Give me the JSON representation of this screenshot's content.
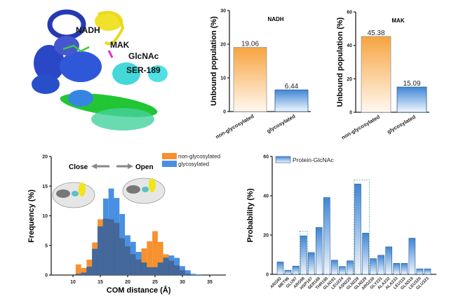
{
  "structure_panel": {
    "labels": [
      "NADH",
      "MAK",
      "GlcNAc",
      "SER-189"
    ]
  },
  "chart_data": [
    {
      "type": "bar",
      "title": "NADH",
      "ylabel": "Unbound population (%)",
      "categories": [
        "non-glycosylated",
        "glycosylated"
      ],
      "values": [
        19.06,
        6.44
      ],
      "data_labels": [
        "19.06",
        "6.44"
      ],
      "ylim": [
        0,
        30
      ],
      "yticks": [
        0,
        10,
        20,
        30
      ],
      "colors": [
        "#f7a84a",
        "#4a90d9"
      ],
      "grid": false
    },
    {
      "type": "bar",
      "title": "MAK",
      "ylabel": "Unbound population (%)",
      "categories": [
        "non-glycosylated",
        "glycosylated"
      ],
      "values": [
        45.38,
        15.09
      ],
      "data_labels": [
        "45.38",
        "15.09"
      ],
      "ylim": [
        0,
        60
      ],
      "yticks": [
        0,
        20,
        40,
        60
      ],
      "colors": [
        "#f7a84a",
        "#4a90d9"
      ],
      "grid": false
    },
    {
      "type": "bar",
      "subtype": "histogram",
      "xlabel": "COM distance (Å)",
      "ylabel": "Frequency (%)",
      "xlim": [
        7,
        38
      ],
      "ylim": [
        0,
        20
      ],
      "xticks": [
        10,
        15,
        20,
        25,
        30,
        35
      ],
      "yticks": [
        0,
        5,
        10,
        15,
        20
      ],
      "bin_starts": [
        10.5,
        11.5,
        12.5,
        13.5,
        14.5,
        15.5,
        16.5,
        17.5,
        18.5,
        19.5,
        20.5,
        21.5,
        22.5,
        23.5,
        24.5,
        25.5,
        26.5,
        27.5,
        28.5,
        29.5,
        30.5,
        31.5,
        32.5
      ],
      "bin_width": 1,
      "series": [
        {
          "name": "non-glycosylated",
          "color": "#f5922f",
          "values": [
            1.8,
            1.2,
            2.6,
            5.5,
            9.4,
            9.5,
            9.4,
            8.8,
            6.2,
            4.8,
            3.5,
            2.6,
            4.5,
            5.7,
            7.4,
            5.6,
            3.5,
            2.4,
            1.6,
            0.8,
            0.2,
            0,
            0
          ]
        },
        {
          "name": "glycosylated",
          "color": "#4a90e2",
          "values": [
            0.2,
            0.4,
            1.4,
            4.4,
            8.2,
            12.9,
            14.6,
            13.0,
            10.3,
            6.7,
            5.6,
            3.9,
            2.1,
            1.3,
            1.3,
            2.1,
            2.9,
            3.3,
            2.9,
            1.5,
            0.8,
            0.2,
            0.1
          ]
        }
      ],
      "overlap_color": "#44689a",
      "legend": "top-right",
      "annotations": {
        "close": "Close",
        "open": "Open"
      },
      "grid": false
    },
    {
      "type": "bar",
      "ylabel": "Probability (%)",
      "ylim": [
        0,
        60
      ],
      "yticks": [
        0,
        20,
        40,
        60
      ],
      "categories": [
        "ARG92",
        "MET96",
        "GLU97",
        "ARG98",
        "HSP187",
        "SER188",
        "THR190",
        "GLN191",
        "LEU224",
        "ASN225",
        "GLN228",
        "GLN229",
        "ARG230",
        "GLY231",
        "ALA232",
        "ALA233",
        "LEU115",
        "GLN319",
        "LEU320",
        "GLU323"
      ],
      "series": [
        {
          "name": "Protein-GlcNAc",
          "color": "#3f86d6",
          "values": [
            6.3,
            2.1,
            4.2,
            19.6,
            11.1,
            23.9,
            39.1,
            7.2,
            4.0,
            6.9,
            46.0,
            21.0,
            8.0,
            9.7,
            14.0,
            5.6,
            5.6,
            18.4,
            2.8,
            2.8
          ]
        }
      ],
      "highlighted": [
        "ARG98",
        "GLN228",
        "GLN229"
      ],
      "legend": "top-left",
      "grid": false
    }
  ]
}
